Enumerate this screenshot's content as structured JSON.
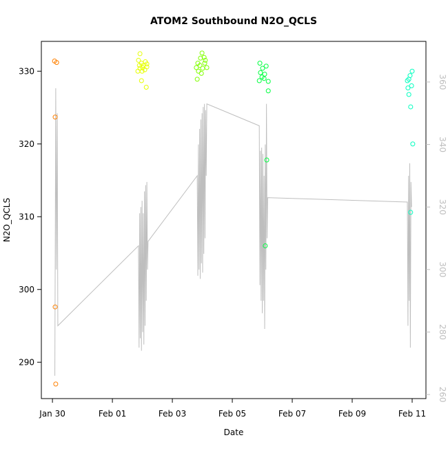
{
  "chart_data": {
    "type": "scatter",
    "title": "ATOM2 Southbound N2O_QCLS",
    "x_label": "Date",
    "y_label": "N2O_QCLS",
    "xlim": [
      -0.37,
      12.46
    ],
    "xticks": [
      {
        "value": 0,
        "label": "Jan 30"
      },
      {
        "value": 2,
        "label": "Feb 01"
      },
      {
        "value": 4,
        "label": "Feb 03"
      },
      {
        "value": 6,
        "label": "Feb 05"
      },
      {
        "value": 8,
        "label": "Feb 07"
      },
      {
        "value": 10,
        "label": "Feb 09"
      },
      {
        "value": 12,
        "label": "Feb 11"
      }
    ],
    "ylim": [
      285.0,
      334.1
    ],
    "yticks": [
      290,
      300,
      310,
      320,
      330
    ],
    "y2lim": [
      258.7,
      373.0
    ],
    "y2ticks": [
      260,
      280,
      300,
      320,
      340,
      360
    ],
    "series": [
      {
        "color": "#FF8000",
        "x": [
          0.07,
          0.14,
          0.09,
          0.09,
          0.11
        ],
        "values": [
          331.4,
          331.2,
          323.7,
          297.6,
          287.0
        ]
      },
      {
        "color": "#E6FF00",
        "x": [
          2.92,
          2.87,
          2.97,
          3.1,
          3.03,
          3.15,
          2.92,
          3.08,
          2.99,
          2.85,
          3.15,
          2.97,
          3.13,
          3.01,
          2.9
        ],
        "values": [
          332.4,
          331.5,
          331.1,
          331.3,
          330.8,
          330.6,
          330.4,
          330.2,
          330.0,
          330.0,
          331.0,
          328.7,
          327.8,
          330.5,
          330.8
        ]
      },
      {
        "color": "#80FF00",
        "x": [
          4.99,
          5.06,
          4.85,
          5.1,
          4.92,
          4.8,
          5.01,
          5.15,
          4.87,
          4.97,
          4.83,
          5.08,
          4.94
        ],
        "values": [
          332.5,
          331.9,
          331.1,
          331.5,
          330.8,
          330.5,
          330.4,
          330.5,
          330.0,
          329.7,
          328.9,
          331.1,
          331.8
        ]
      },
      {
        "color": "#00FF40",
        "x": [
          6.92,
          7.13,
          7.01,
          6.94,
          7.08,
          6.99,
          6.9,
          7.2,
          7.06,
          7.2,
          7.15,
          7.1
        ],
        "values": [
          331.1,
          330.7,
          330.4,
          329.8,
          329.6,
          329.2,
          328.7,
          328.6,
          329.0,
          327.3,
          317.8,
          306.0
        ]
      },
      {
        "color": "#00FFBF",
        "x": [
          12.0,
          11.93,
          11.89,
          11.84,
          11.98,
          11.86,
          11.89,
          11.95,
          12.02,
          11.95
        ],
        "values": [
          330.0,
          329.4,
          328.9,
          328.7,
          328.0,
          327.7,
          326.8,
          325.1,
          320.0,
          310.6
        ]
      },
      {
        "type": "line",
        "axis": "y2",
        "color": "#BEBEBE",
        "x": [
          0.08,
          0.11,
          0.13,
          0.16,
          0.18,
          2.87,
          2.89,
          2.91,
          2.93,
          2.95,
          2.97,
          2.99,
          3.01,
          3.03,
          3.05,
          3.07,
          3.09,
          3.11,
          3.13,
          3.15,
          3.17,
          3.19,
          4.83,
          4.85,
          4.87,
          4.89,
          4.91,
          4.93,
          4.95,
          4.97,
          4.99,
          5.01,
          5.03,
          5.05,
          5.07,
          5.09,
          5.11,
          5.13,
          5.15,
          6.9,
          6.92,
          6.94,
          6.96,
          6.98,
          7.0,
          7.02,
          7.04,
          7.06,
          7.08,
          7.1,
          7.12,
          7.14,
          7.16,
          7.18,
          11.84,
          11.86,
          11.88,
          11.9,
          11.92,
          11.94,
          11.96,
          11.98
        ],
        "values": [
          266,
          358,
          300,
          350,
          282,
          307.6,
          275,
          318,
          278,
          320,
          274,
          322,
          280,
          318,
          276,
          325,
          282,
          327,
          290,
          328,
          300,
          309,
          330,
          298,
          340,
          300,
          345,
          297,
          348,
          302,
          350,
          299,
          352,
          305,
          353,
          310,
          351,
          330,
          353,
          346,
          295,
          338,
          290,
          339,
          286,
          337,
          290,
          330,
          281,
          340,
          300,
          353,
          310,
          323,
          321.6,
          282,
          330,
          290,
          334,
          275,
          328,
          320
        ]
      }
    ]
  }
}
